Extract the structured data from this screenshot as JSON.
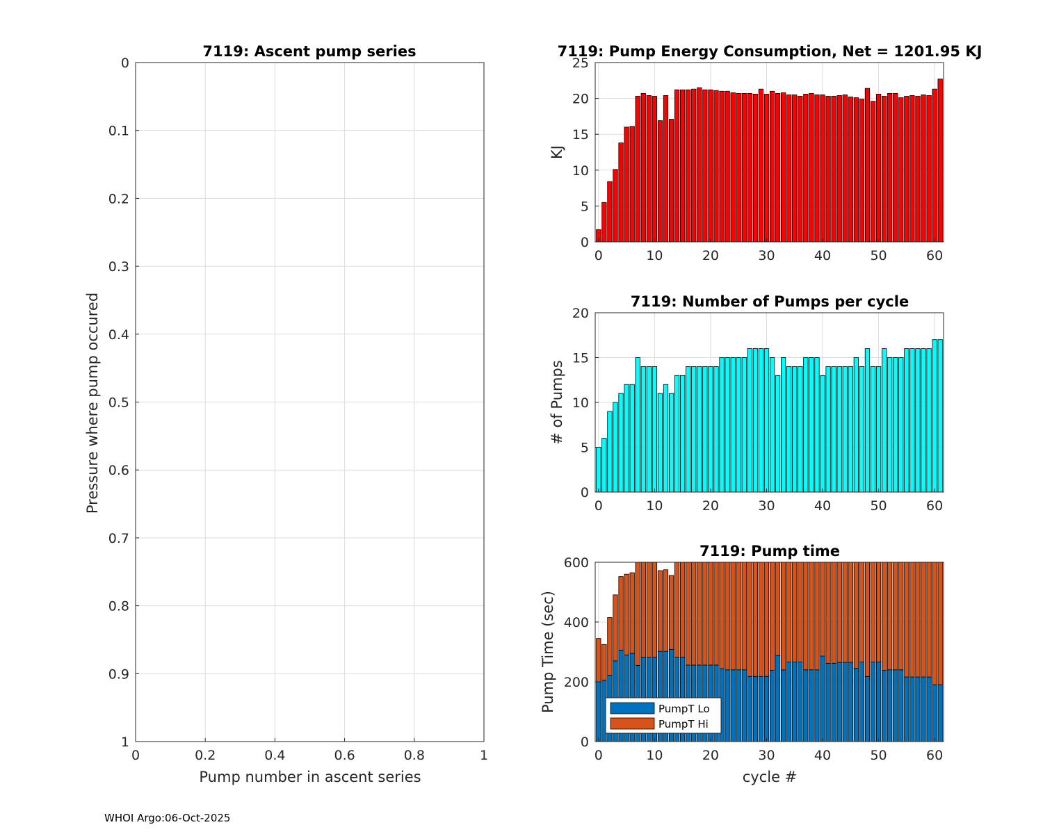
{
  "colors": {
    "energy_bar": "#ff0000",
    "pumps_bar": "#00ffff",
    "pump_lo": "#0072bd",
    "pump_hi": "#d95319",
    "grid": "#dcdcdc",
    "axis": "#262626"
  },
  "footer": "WHOI Argo:06-Oct-2025",
  "chart_data": [
    {
      "id": "ascent",
      "type": "scatter",
      "title": "7119: Ascent pump series",
      "xlabel": "Pump number in ascent series",
      "ylabel": "Pressure where pump occured",
      "xlim": [
        0,
        1
      ],
      "ylim": [
        0,
        1
      ],
      "y_reversed": true,
      "grid": true,
      "xticks": [
        0,
        0.2,
        0.4,
        0.6,
        0.8,
        1
      ],
      "xtick_labels": [
        "0",
        "0.2",
        "0.4",
        "0.6",
        "0.8",
        "1"
      ],
      "yticks": [
        0,
        0.1,
        0.2,
        0.3,
        0.4,
        0.5,
        0.6,
        0.7,
        0.8,
        0.9,
        1
      ],
      "ytick_labels": [
        "0",
        "0.1",
        "0.2",
        "0.3",
        "0.4",
        "0.5",
        "0.6",
        "0.7",
        "0.8",
        "0.9",
        "1"
      ],
      "series": []
    },
    {
      "id": "energy",
      "type": "bar",
      "title": "7119: Pump Energy Consumption,  Net = 1201.95 KJ",
      "xlabel": "",
      "ylabel": "KJ",
      "xlim": [
        -0.6,
        61.6
      ],
      "ylim": [
        0,
        25
      ],
      "grid": true,
      "xticks": [
        0,
        10,
        20,
        30,
        40,
        50,
        60
      ],
      "xtick_labels": [
        "0",
        "10",
        "20",
        "30",
        "40",
        "50",
        "60"
      ],
      "yticks": [
        0,
        5,
        10,
        15,
        20,
        25
      ],
      "ytick_labels": [
        "0",
        "5",
        "10",
        "15",
        "20",
        "25"
      ],
      "x_start": 0,
      "values": [
        1.7,
        5.5,
        8.4,
        10.1,
        13.8,
        16,
        16.1,
        20.3,
        20.7,
        20.4,
        20.3,
        16.9,
        20.4,
        17.1,
        21.2,
        21.2,
        21.2,
        21.3,
        21.5,
        21.2,
        21.2,
        21.1,
        21.0,
        21.0,
        20.8,
        20.7,
        20.7,
        20.7,
        20.6,
        21.3,
        20.6,
        21.0,
        20.7,
        20.8,
        20.5,
        20.5,
        20.3,
        20.6,
        20.7,
        20.5,
        20.5,
        20.3,
        20.3,
        20.4,
        20.5,
        20.2,
        20.1,
        19.9,
        21.4,
        19.6,
        20.6,
        20.3,
        20.7,
        20.7,
        20.1,
        20.3,
        20.4,
        20.3,
        20.5,
        20.4,
        21.3,
        22.7
      ]
    },
    {
      "id": "pumps",
      "type": "bar",
      "title": "7119: Number of Pumps per cycle",
      "xlabel": "",
      "ylabel": "# of Pumps",
      "xlim": [
        -0.6,
        61.6
      ],
      "ylim": [
        0,
        20
      ],
      "grid": true,
      "xticks": [
        0,
        10,
        20,
        30,
        40,
        50,
        60
      ],
      "xtick_labels": [
        "0",
        "10",
        "20",
        "30",
        "40",
        "50",
        "60"
      ],
      "yticks": [
        0,
        5,
        10,
        15,
        20
      ],
      "ytick_labels": [
        "0",
        "5",
        "10",
        "15",
        "20"
      ],
      "x_start": 0,
      "values": [
        5,
        6,
        9,
        10,
        11,
        12,
        12,
        15,
        14,
        14,
        14,
        11,
        12,
        11,
        13,
        13,
        14,
        14,
        14,
        14,
        14,
        14,
        15,
        15,
        15,
        15,
        15,
        16,
        16,
        16,
        16,
        15,
        13,
        15,
        14,
        14,
        14,
        15,
        15,
        15,
        13,
        14,
        14,
        14,
        14,
        14,
        15,
        14,
        16,
        14,
        14,
        16,
        15,
        15,
        15,
        16,
        16,
        16,
        16,
        16,
        17,
        17
      ]
    },
    {
      "id": "pumptime",
      "type": "bar",
      "stacked": true,
      "title": "7119: Pump time",
      "xlabel": "cycle #",
      "ylabel": "Pump Time (sec)",
      "xlim": [
        -0.6,
        61.6
      ],
      "ylim": [
        0,
        600
      ],
      "grid": true,
      "xticks": [
        0,
        10,
        20,
        30,
        40,
        50,
        60
      ],
      "xtick_labels": [
        "0",
        "10",
        "20",
        "30",
        "40",
        "50",
        "60"
      ],
      "yticks": [
        0,
        200,
        400,
        600
      ],
      "ytick_labels": [
        "0",
        "200",
        "400",
        "600"
      ],
      "x_start": 0,
      "legend_position": "bottom-left",
      "series": [
        {
          "name": "PumpT Lo",
          "values": [
            200,
            205,
            222,
            270,
            306,
            290,
            295,
            255,
            282,
            282,
            282,
            302,
            302,
            308,
            282,
            282,
            256,
            256,
            256,
            256,
            256,
            256,
            244,
            240,
            240,
            240,
            240,
            218,
            218,
            218,
            218,
            238,
            288,
            240,
            266,
            266,
            266,
            240,
            240,
            240,
            286,
            262,
            262,
            265,
            265,
            265,
            245,
            266,
            218,
            266,
            266,
            238,
            240,
            240,
            240,
            216,
            216,
            216,
            216,
            216,
            190,
            190
          ]
        },
        {
          "name": "PumpT Hi",
          "values": [
            145,
            120,
            193,
            221,
            246,
            270,
            270,
            345,
            318,
            318,
            318,
            270,
            273,
            248,
            318,
            318,
            344,
            344,
            344,
            344,
            344,
            344,
            356,
            360,
            360,
            360,
            360,
            382,
            382,
            382,
            382,
            362,
            312,
            360,
            334,
            334,
            334,
            360,
            360,
            360,
            314,
            338,
            338,
            335,
            335,
            335,
            355,
            334,
            382,
            334,
            334,
            362,
            360,
            360,
            360,
            384,
            384,
            384,
            384,
            384,
            410,
            410
          ]
        }
      ]
    }
  ]
}
